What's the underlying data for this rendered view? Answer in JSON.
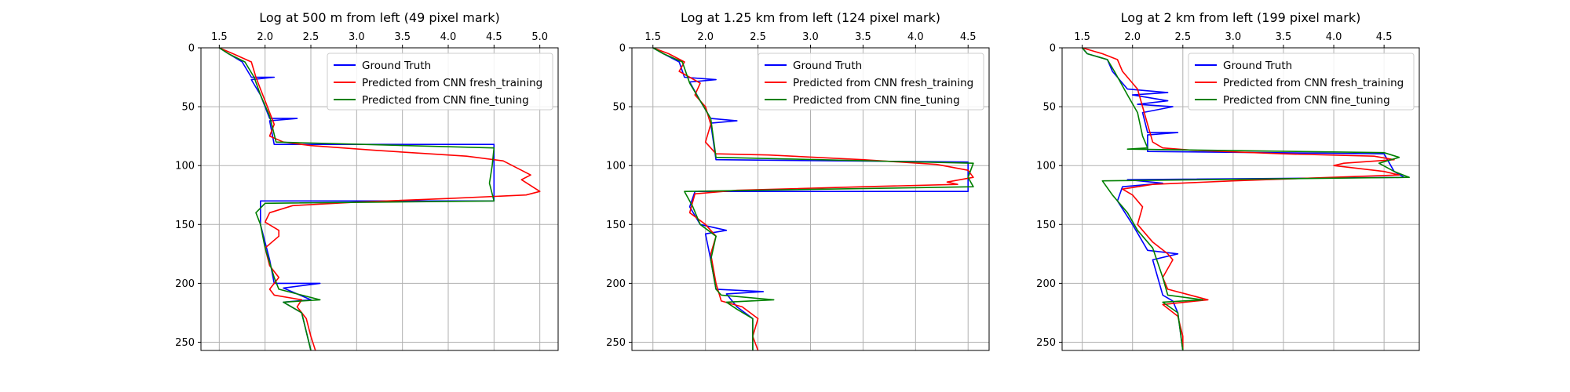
{
  "colors": {
    "ground_truth": "#0000ff",
    "fresh_training": "#ff0000",
    "fine_tuning": "#008000"
  },
  "chart_data": [
    {
      "type": "line",
      "title": "Log at 500 m from left (49 pixel mark)",
      "xlim": [
        1.3,
        5.2
      ],
      "ylim": [
        0,
        257
      ],
      "y_inverted": true,
      "x_axis_position": "top",
      "xticks": [
        "1.5",
        "2.0",
        "2.5",
        "3.0",
        "3.5",
        "4.0",
        "4.5",
        "5.0"
      ],
      "yticks": [
        "0",
        "50",
        "100",
        "150",
        "200",
        "250"
      ],
      "grid": true,
      "legend": "top-right",
      "series": [
        {
          "name": "Ground Truth",
          "color_key": "ground_truth",
          "points": [
            [
              1.5,
              0
            ],
            [
              1.6,
              5
            ],
            [
              1.75,
              12
            ],
            [
              1.85,
              25
            ],
            [
              2.1,
              25
            ],
            [
              1.85,
              27
            ],
            [
              1.95,
              40
            ],
            [
              2.05,
              60
            ],
            [
              2.35,
              60
            ],
            [
              2.05,
              62
            ],
            [
              2.1,
              82
            ],
            [
              4.5,
              82
            ],
            [
              4.5,
              130
            ],
            [
              1.95,
              130
            ],
            [
              1.95,
              150
            ],
            [
              2.05,
              180
            ],
            [
              2.1,
              200
            ],
            [
              2.6,
              200
            ],
            [
              2.2,
              204
            ],
            [
              2.5,
              214
            ],
            [
              2.2,
              216
            ],
            [
              2.4,
              225
            ],
            [
              2.5,
              257
            ]
          ]
        },
        {
          "name": "Predicted from CNN fresh_training",
          "color_key": "fresh_training",
          "points": [
            [
              1.5,
              0
            ],
            [
              1.65,
              5
            ],
            [
              1.85,
              12
            ],
            [
              1.9,
              25
            ],
            [
              1.95,
              35
            ],
            [
              2.0,
              45
            ],
            [
              2.05,
              55
            ],
            [
              2.1,
              65
            ],
            [
              2.05,
              75
            ],
            [
              2.2,
              80
            ],
            [
              2.5,
              83
            ],
            [
              3.2,
              87
            ],
            [
              4.2,
              92
            ],
            [
              4.6,
              96
            ],
            [
              4.75,
              102
            ],
            [
              4.9,
              108
            ],
            [
              4.8,
              112
            ],
            [
              5.0,
              122
            ],
            [
              4.85,
              125
            ],
            [
              4.0,
              128
            ],
            [
              3.0,
              131
            ],
            [
              2.3,
              134
            ],
            [
              2.05,
              140
            ],
            [
              2.0,
              148
            ],
            [
              2.15,
              155
            ],
            [
              2.15,
              160
            ],
            [
              2.0,
              170
            ],
            [
              2.05,
              185
            ],
            [
              2.15,
              195
            ],
            [
              2.05,
              205
            ],
            [
              2.1,
              210
            ],
            [
              2.4,
              214
            ],
            [
              2.35,
              220
            ],
            [
              2.45,
              230
            ],
            [
              2.5,
              245
            ],
            [
              2.55,
              257
            ]
          ]
        },
        {
          "name": "Predicted from CNN fine_tuning",
          "color_key": "fine_tuning",
          "points": [
            [
              1.5,
              0
            ],
            [
              1.6,
              5
            ],
            [
              1.78,
              12
            ],
            [
              1.88,
              25
            ],
            [
              1.95,
              40
            ],
            [
              2.05,
              58
            ],
            [
              2.12,
              80
            ],
            [
              4.5,
              85
            ],
            [
              4.48,
              100
            ],
            [
              4.45,
              115
            ],
            [
              4.5,
              130
            ],
            [
              2.0,
              132
            ],
            [
              1.9,
              140
            ],
            [
              1.95,
              150
            ],
            [
              2.0,
              170
            ],
            [
              2.1,
              195
            ],
            [
              2.15,
              205
            ],
            [
              2.6,
              214
            ],
            [
              2.2,
              216
            ],
            [
              2.4,
              225
            ],
            [
              2.5,
              257
            ]
          ]
        }
      ]
    },
    {
      "type": "line",
      "title": "Log at 1.25 km from left (124 pixel mark)",
      "xlim": [
        1.3,
        4.7
      ],
      "ylim": [
        0,
        257
      ],
      "y_inverted": true,
      "x_axis_position": "top",
      "xticks": [
        "1.5",
        "2.0",
        "2.5",
        "3.0",
        "3.5",
        "4.0",
        "4.5"
      ],
      "yticks": [
        "0",
        "50",
        "100",
        "150",
        "200",
        "250"
      ],
      "grid": true,
      "legend": "top-right",
      "series": [
        {
          "name": "Ground Truth",
          "color_key": "ground_truth",
          "points": [
            [
              1.5,
              0
            ],
            [
              1.6,
              5
            ],
            [
              1.75,
              12
            ],
            [
              1.8,
              25
            ],
            [
              2.1,
              27
            ],
            [
              1.85,
              29
            ],
            [
              1.95,
              45
            ],
            [
              2.05,
              60
            ],
            [
              2.3,
              62
            ],
            [
              2.05,
              64
            ],
            [
              2.1,
              95
            ],
            [
              4.5,
              97
            ],
            [
              4.5,
              122
            ],
            [
              1.9,
              122
            ],
            [
              1.85,
              135
            ],
            [
              1.95,
              150
            ],
            [
              2.2,
              155
            ],
            [
              2.0,
              158
            ],
            [
              2.05,
              180
            ],
            [
              2.1,
              205
            ],
            [
              2.55,
              207
            ],
            [
              2.2,
              209
            ],
            [
              2.3,
              220
            ],
            [
              2.45,
              230
            ],
            [
              2.45,
              257
            ]
          ]
        },
        {
          "name": "Predicted from CNN fresh_training",
          "color_key": "fresh_training",
          "points": [
            [
              1.5,
              0
            ],
            [
              1.65,
              5
            ],
            [
              1.8,
              12
            ],
            [
              1.75,
              20
            ],
            [
              1.95,
              30
            ],
            [
              1.9,
              40
            ],
            [
              2.0,
              50
            ],
            [
              2.05,
              65
            ],
            [
              2.0,
              80
            ],
            [
              2.1,
              90
            ],
            [
              2.6,
              91
            ],
            [
              3.5,
              95
            ],
            [
              4.2,
              99
            ],
            [
              4.5,
              104
            ],
            [
              4.55,
              110
            ],
            [
              4.3,
              114
            ],
            [
              4.4,
              116
            ],
            [
              3.5,
              118
            ],
            [
              2.3,
              121
            ],
            [
              1.9,
              124
            ],
            [
              1.85,
              140
            ],
            [
              2.0,
              150
            ],
            [
              2.1,
              160
            ],
            [
              2.05,
              175
            ],
            [
              2.1,
              200
            ],
            [
              2.15,
              215
            ],
            [
              2.35,
              220
            ],
            [
              2.5,
              230
            ],
            [
              2.45,
              245
            ],
            [
              2.5,
              257
            ]
          ]
        },
        {
          "name": "Predicted from CNN fine_tuning",
          "color_key": "fine_tuning",
          "points": [
            [
              1.5,
              0
            ],
            [
              1.6,
              5
            ],
            [
              1.78,
              12
            ],
            [
              1.85,
              30
            ],
            [
              1.95,
              45
            ],
            [
              2.05,
              60
            ],
            [
              2.1,
              93
            ],
            [
              4.55,
              98
            ],
            [
              4.5,
              110
            ],
            [
              4.55,
              118
            ],
            [
              1.8,
              122
            ],
            [
              1.88,
              135
            ],
            [
              1.95,
              150
            ],
            [
              2.1,
              160
            ],
            [
              2.05,
              180
            ],
            [
              2.1,
              205
            ],
            [
              2.15,
              210
            ],
            [
              2.65,
              214
            ],
            [
              2.2,
              216
            ],
            [
              2.3,
              222
            ],
            [
              2.45,
              230
            ],
            [
              2.45,
              257
            ]
          ]
        }
      ]
    },
    {
      "type": "line",
      "title": "Log at 2 km from left (199 pixel mark)",
      "xlim": [
        1.3,
        4.85
      ],
      "ylim": [
        0,
        257
      ],
      "y_inverted": true,
      "x_axis_position": "top",
      "xticks": [
        "1.5",
        "2.0",
        "2.5",
        "3.0",
        "3.5",
        "4.0",
        "4.5"
      ],
      "yticks": [
        "0",
        "50",
        "100",
        "150",
        "200",
        "250"
      ],
      "grid": true,
      "legend": "top-right",
      "series": [
        {
          "name": "Ground Truth",
          "color_key": "ground_truth",
          "points": [
            [
              1.5,
              0
            ],
            [
              1.55,
              5
            ],
            [
              1.75,
              10
            ],
            [
              1.8,
              20
            ],
            [
              1.95,
              35
            ],
            [
              2.35,
              38
            ],
            [
              2.0,
              40
            ],
            [
              2.35,
              45
            ],
            [
              2.05,
              48
            ],
            [
              2.4,
              50
            ],
            [
              2.1,
              55
            ],
            [
              2.15,
              72
            ],
            [
              2.45,
              72
            ],
            [
              2.15,
              74
            ],
            [
              2.15,
              88
            ],
            [
              4.5,
              90
            ],
            [
              4.6,
              105
            ],
            [
              4.7,
              110
            ],
            [
              1.95,
              112
            ],
            [
              2.3,
              115
            ],
            [
              1.9,
              118
            ],
            [
              1.85,
              130
            ],
            [
              2.0,
              150
            ],
            [
              2.15,
              172
            ],
            [
              2.45,
              175
            ],
            [
              2.2,
              180
            ],
            [
              2.25,
              195
            ],
            [
              2.3,
              210
            ],
            [
              2.4,
              215
            ],
            [
              2.45,
              225
            ],
            [
              2.5,
              257
            ]
          ]
        },
        {
          "name": "Predicted from CNN fresh_training",
          "color_key": "fresh_training",
          "points": [
            [
              1.5,
              0
            ],
            [
              1.7,
              5
            ],
            [
              1.85,
              10
            ],
            [
              1.9,
              20
            ],
            [
              2.05,
              35
            ],
            [
              2.1,
              50
            ],
            [
              2.15,
              65
            ],
            [
              2.2,
              80
            ],
            [
              2.3,
              85
            ],
            [
              2.6,
              87
            ],
            [
              3.5,
              90
            ],
            [
              4.4,
              92
            ],
            [
              4.6,
              95
            ],
            [
              4.1,
              98
            ],
            [
              4.0,
              100
            ],
            [
              4.5,
              105
            ],
            [
              4.65,
              108
            ],
            [
              3.0,
              113
            ],
            [
              2.2,
              116
            ],
            [
              1.9,
              120
            ],
            [
              2.0,
              125
            ],
            [
              2.1,
              135
            ],
            [
              2.05,
              150
            ],
            [
              2.2,
              165
            ],
            [
              2.35,
              175
            ],
            [
              2.4,
              180
            ],
            [
              2.3,
              195
            ],
            [
              2.35,
              205
            ],
            [
              2.75,
              214
            ],
            [
              2.3,
              218
            ],
            [
              2.45,
              228
            ],
            [
              2.5,
              245
            ],
            [
              2.5,
              257
            ]
          ]
        },
        {
          "name": "Predicted from CNN fine_tuning",
          "color_key": "fine_tuning",
          "points": [
            [
              1.5,
              0
            ],
            [
              1.55,
              5
            ],
            [
              1.75,
              10
            ],
            [
              1.82,
              20
            ],
            [
              1.95,
              40
            ],
            [
              2.05,
              55
            ],
            [
              2.1,
              75
            ],
            [
              2.15,
              85
            ],
            [
              1.95,
              86
            ],
            [
              4.5,
              89
            ],
            [
              4.65,
              93
            ],
            [
              4.45,
              98
            ],
            [
              4.6,
              105
            ],
            [
              4.75,
              110
            ],
            [
              1.7,
              113
            ],
            [
              1.8,
              125
            ],
            [
              1.95,
              140
            ],
            [
              2.05,
              155
            ],
            [
              2.2,
              170
            ],
            [
              2.3,
              195
            ],
            [
              2.35,
              210
            ],
            [
              2.7,
              214
            ],
            [
              2.3,
              216
            ],
            [
              2.45,
              225
            ],
            [
              2.5,
              257
            ]
          ]
        }
      ]
    }
  ]
}
